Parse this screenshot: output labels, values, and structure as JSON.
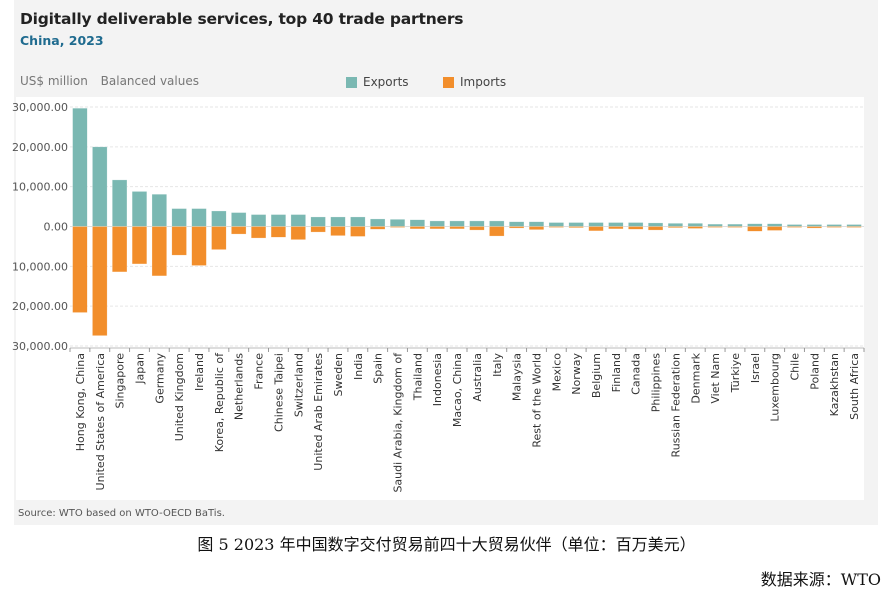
{
  "header": {
    "title": "Digitally deliverable services, top 40 trade partners",
    "subtitle": "China, 2023",
    "unit": "US$ million",
    "mode": "Balanced values"
  },
  "legend": {
    "exports_label": "Exports",
    "imports_label": "Imports"
  },
  "colors": {
    "exports": "#7ab8b2",
    "imports": "#f28e2b",
    "subtitle": "#1f6b8f"
  },
  "footer": {
    "source": "Source: WTO based on WTO-OECD BaTis.",
    "caption": "图 5 2023 年中国数字交付贸易前四十大贸易伙伴（单位：百万美元）",
    "data_source": "数据来源：WTO"
  },
  "chart_data": {
    "type": "bar",
    "title": "Digitally deliverable services, top 40 trade partners",
    "subtitle": "China, 2023",
    "xlabel": "",
    "ylabel": "US$ million",
    "ylim": [
      -30000,
      30000
    ],
    "yticks": [
      30000,
      20000,
      10000,
      0,
      -10000,
      -20000,
      -30000
    ],
    "ytick_labels": [
      "30,000.00",
      "20,000.00",
      "10,000.00",
      "0.00",
      "10,000.00",
      "20,000.00",
      "30,000.00"
    ],
    "grid": true,
    "legend_position": "top-center",
    "categories": [
      "Hong Kong, China",
      "United States of America",
      "Singapore",
      "Japan",
      "Germany",
      "United Kingdom",
      "Ireland",
      "Korea, Republic of",
      "Netherlands",
      "France",
      "Chinese Taipei",
      "Switzerland",
      "United Arab Emirates",
      "Sweden",
      "India",
      "Spain",
      "Saudi Arabia, Kingdom of",
      "Thailand",
      "Indonesia",
      "Macao, China",
      "Australia",
      "Italy",
      "Malaysia",
      "Rest of the World",
      "Mexico",
      "Norway",
      "Belgium",
      "Finland",
      "Canada",
      "Philippines",
      "Russian Federation",
      "Denmark",
      "Viet Nam",
      "Türkiye",
      "Israel",
      "Luxembourg",
      "Chile",
      "Poland",
      "Kazakhstan",
      "South Africa"
    ],
    "series": [
      {
        "name": "Exports",
        "values": [
          29700,
          20000,
          11700,
          8800,
          8100,
          4500,
          4500,
          3900,
          3500,
          3000,
          3000,
          3000,
          2400,
          2400,
          2400,
          1900,
          1800,
          1700,
          1400,
          1400,
          1400,
          1400,
          1200,
          1200,
          1000,
          1000,
          1000,
          1000,
          1000,
          900,
          800,
          800,
          600,
          600,
          700,
          700,
          500,
          500,
          500,
          500
        ]
      },
      {
        "name": "Imports",
        "values": [
          -21600,
          -27400,
          -11400,
          -9400,
          -12400,
          -7200,
          -9800,
          -5800,
          -1900,
          -2900,
          -2700,
          -3300,
          -1400,
          -2300,
          -2500,
          -700,
          -200,
          -600,
          -600,
          -600,
          -900,
          -2400,
          -400,
          -800,
          -200,
          -300,
          -1100,
          -600,
          -700,
          -900,
          -300,
          -500,
          -100,
          -100,
          -1200,
          -1000,
          -100,
          -400,
          -100,
          -100
        ]
      }
    ]
  }
}
